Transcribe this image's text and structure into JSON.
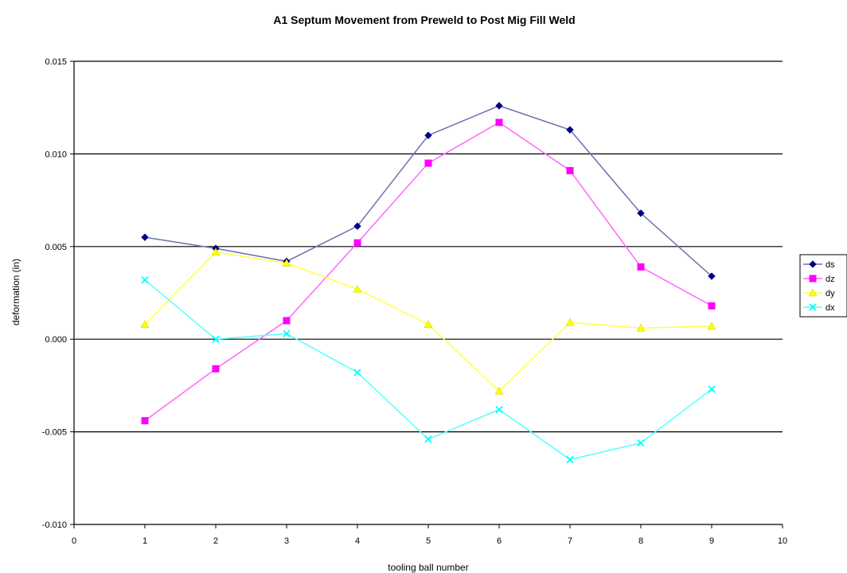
{
  "chart_data": {
    "type": "line",
    "title": "A1 Septum Movement from Preweld to Post Mig Fill Weld",
    "xlabel": "tooling ball number",
    "ylabel": "deformation (in)",
    "xlim": [
      0,
      10
    ],
    "ylim": [
      -0.01,
      0.015
    ],
    "x_ticks": [
      "0",
      "1",
      "2",
      "3",
      "4",
      "5",
      "6",
      "7",
      "8",
      "9",
      "10"
    ],
    "y_ticks": [
      "0.015",
      "0.010",
      "0.005",
      "0.000",
      "-0.005",
      "-0.010"
    ],
    "grid": "horizontal major gridlines",
    "legend_position": "right",
    "x": [
      1,
      2,
      3,
      4,
      5,
      6,
      7,
      8,
      9
    ],
    "series": [
      {
        "name": "ds",
        "color": "#000080",
        "marker": "diamond",
        "values": [
          0.0055,
          0.0049,
          0.0042,
          0.0061,
          0.011,
          0.0126,
          0.0113,
          0.0068,
          0.0034
        ]
      },
      {
        "name": "dz",
        "color": "#ff00ff",
        "marker": "square",
        "values": [
          -0.0044,
          -0.0016,
          0.001,
          0.0052,
          0.0095,
          0.0117,
          0.0091,
          0.0039,
          0.0018
        ]
      },
      {
        "name": "dy",
        "color": "#ffff00",
        "marker": "triangle",
        "values": [
          0.0008,
          0.0047,
          0.0041,
          0.0027,
          0.0008,
          -0.0028,
          0.0009,
          0.0006,
          0.0007
        ]
      },
      {
        "name": "dx",
        "color": "#00ffff",
        "marker": "x",
        "values": [
          0.0032,
          0.0,
          0.0003,
          -0.0018,
          -0.0054,
          -0.0038,
          -0.0065,
          -0.0056,
          -0.0027
        ]
      }
    ]
  }
}
